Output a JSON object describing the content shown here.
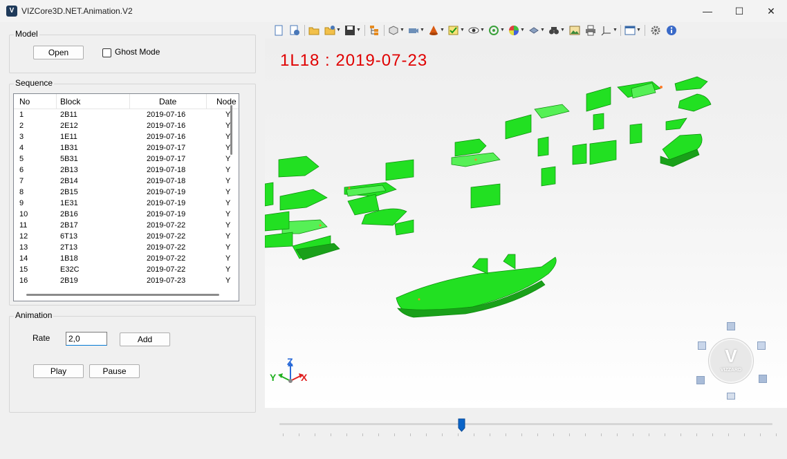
{
  "window": {
    "title": "VIZCore3D.NET.Animation.V2",
    "icon_letter": "V",
    "minimize": "—",
    "maximize": "☐",
    "close": "✕"
  },
  "model": {
    "group_label": "Model",
    "open_button": "Open",
    "ghost_mode_label": "Ghost Mode",
    "ghost_mode_checked": false
  },
  "sequence": {
    "group_label": "Sequence",
    "columns": [
      "No",
      "Block",
      "Date",
      "Node"
    ],
    "rows": [
      [
        "1",
        "2B11",
        "2019-07-16",
        "Y"
      ],
      [
        "2",
        "2E12",
        "2019-07-16",
        "Y"
      ],
      [
        "3",
        "1E11",
        "2019-07-16",
        "Y"
      ],
      [
        "4",
        "1B31",
        "2019-07-17",
        "Y"
      ],
      [
        "5",
        "5B31",
        "2019-07-17",
        "Y"
      ],
      [
        "6",
        "2B13",
        "2019-07-18",
        "Y"
      ],
      [
        "7",
        "2B14",
        "2019-07-18",
        "Y"
      ],
      [
        "8",
        "2B15",
        "2019-07-19",
        "Y"
      ],
      [
        "9",
        "1E31",
        "2019-07-19",
        "Y"
      ],
      [
        "10",
        "2B16",
        "2019-07-19",
        "Y"
      ],
      [
        "11",
        "2B17",
        "2019-07-22",
        "Y"
      ],
      [
        "12",
        "6T13",
        "2019-07-22",
        "Y"
      ],
      [
        "13",
        "2T13",
        "2019-07-22",
        "Y"
      ],
      [
        "14",
        "1B18",
        "2019-07-22",
        "Y"
      ],
      [
        "15",
        "E32C",
        "2019-07-22",
        "Y"
      ],
      [
        "16",
        "2B19",
        "2019-07-23",
        "Y"
      ]
    ]
  },
  "animation": {
    "group_label": "Animation",
    "rate_label": "Rate",
    "rate_value": "2,0",
    "add_button": "Add",
    "play_button": "Play",
    "pause_button": "Pause"
  },
  "viewport": {
    "overlay_text": "1L18  :  2019-07-23",
    "overlay_color": "#e00000",
    "hull_color": "#22e022",
    "axis_labels": {
      "x": "X",
      "y": "Y",
      "z": "Z"
    },
    "nav_cube_text": "VIZZARD",
    "nav_cube_letter": "V"
  },
  "timeline": {
    "position_fraction": 0.37
  },
  "toolbar": {
    "icons": [
      "new-icon",
      "add-icon",
      "open-folder-icon",
      "open-dropdown-icon",
      "save-icon",
      "tree-icon",
      "view-box-icon",
      "camera-icon",
      "cone-icon",
      "checklist-icon",
      "eye-icon",
      "rotate-icon",
      "color-wheel-icon",
      "measure-icon",
      "binoculars-icon",
      "image-icon",
      "print-icon",
      "axis-icon",
      "window-icon",
      "settings-icon",
      "info-icon"
    ]
  }
}
